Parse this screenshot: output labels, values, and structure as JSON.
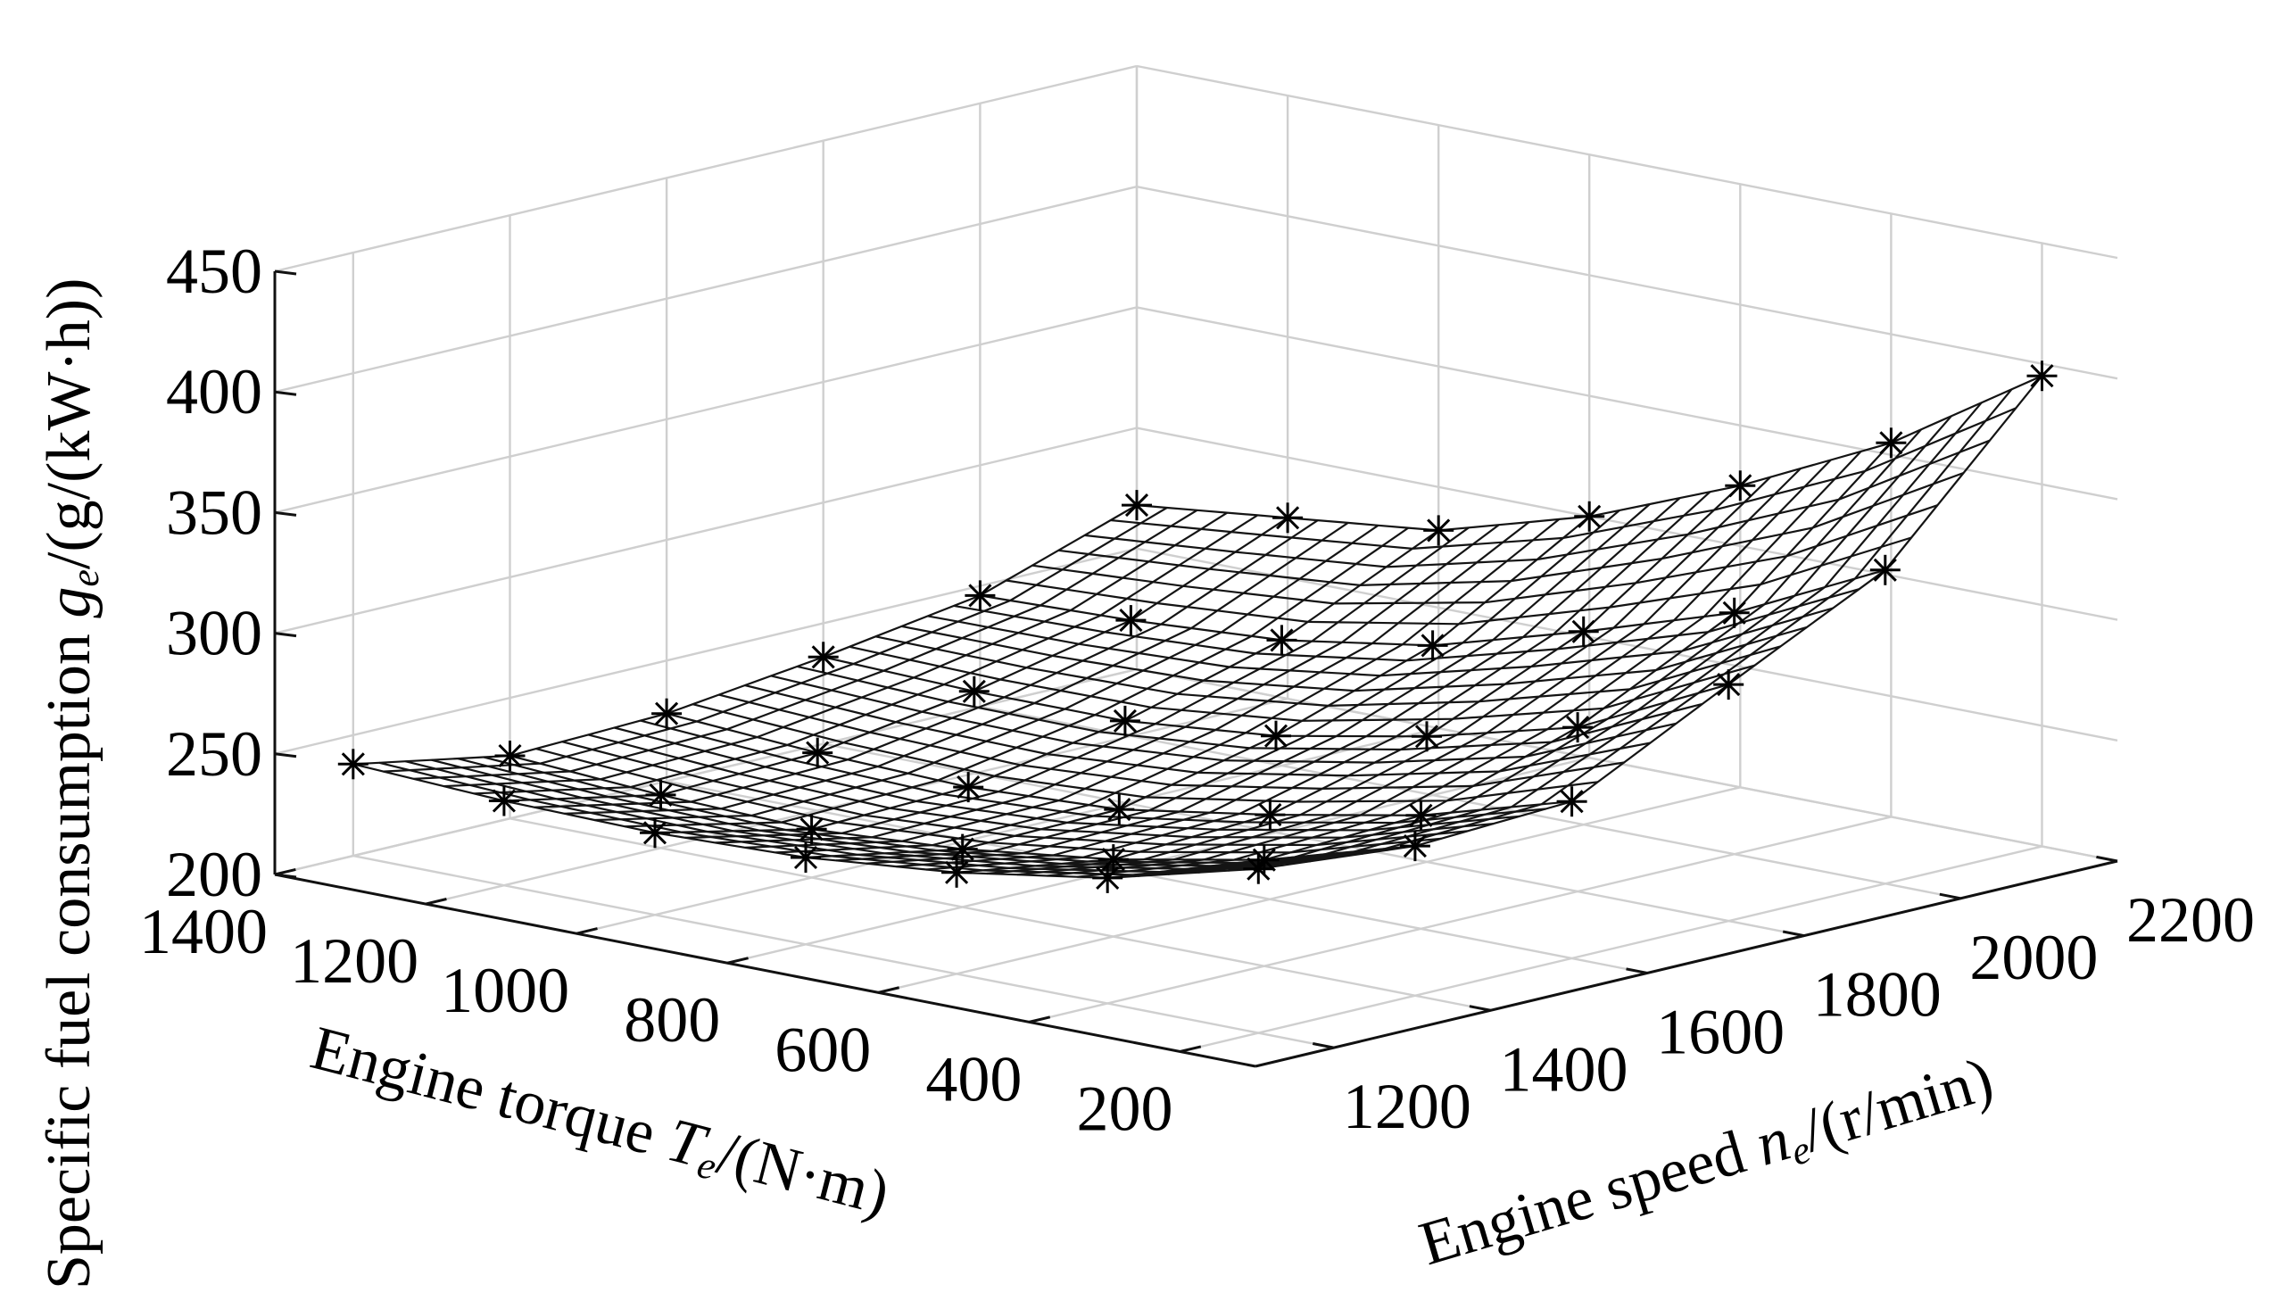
{
  "chart_data": {
    "type": "surface",
    "xlabel": {
      "prefix": "Engine torque ",
      "symbol": "T",
      "subscript": "e",
      "suffix": "/(N·m)"
    },
    "ylabel": {
      "prefix": "Engine speed ",
      "symbol": "n",
      "subscript": "e",
      "suffix": "/(r/min)"
    },
    "zlabel": {
      "prefix": "Specific fuel consumption ",
      "symbol": "g",
      "subscript": "e",
      "suffix": "/(g/(kW·h))"
    },
    "x_ticks": [
      "1400",
      "1200",
      "1000",
      "800",
      "600",
      "400",
      "200"
    ],
    "y_ticks": [
      "1200",
      "1400",
      "1600",
      "1800",
      "2000",
      "2200"
    ],
    "z_ticks": [
      "200",
      "250",
      "300",
      "350",
      "400",
      "450"
    ],
    "xlim": [
      100,
      1400
    ],
    "ylim": [
      1100,
      2200
    ],
    "zlim": [
      200,
      450
    ],
    "grid": true,
    "marker": "asterisk",
    "surface_color": "#ffffff",
    "grid_color": "#cfcfcf",
    "torque": [
      200,
      400,
      600,
      800,
      1000,
      1200,
      1400
    ],
    "speed": [
      1200,
      1400,
      1600,
      1800,
      2000,
      2200
    ],
    "sfc": [
      [
        268,
        262,
        265,
        298,
        330,
        395
      ],
      [
        252,
        244,
        247,
        268,
        300,
        355
      ],
      [
        242,
        232,
        235,
        252,
        280,
        325
      ],
      [
        236,
        224,
        225,
        240,
        262,
        300
      ],
      [
        234,
        220,
        222,
        234,
        252,
        282
      ],
      [
        235,
        222,
        224,
        234,
        248,
        275
      ],
      [
        238,
        226,
        228,
        236,
        246,
        268
      ]
    ]
  }
}
